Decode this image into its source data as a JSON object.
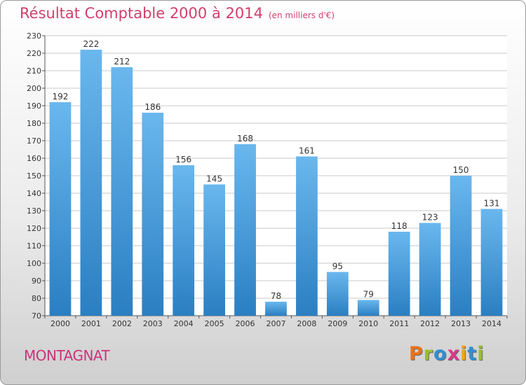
{
  "header": {
    "title": "Résultat Comptable 2000 à 2014",
    "unit": "(en milliers d'€)"
  },
  "footer": {
    "commune": "MONTAGNAT",
    "logo_text": "Proxiti"
  },
  "colors": {
    "title": "#d13f6b",
    "bar_top": "#6ab7ee",
    "bar_bottom": "#2a7fc2",
    "logo": [
      "#e8721c",
      "#9bbf2a",
      "#2f8fd0",
      "#d93a8a",
      "#f0a41c",
      "#2f8fd0",
      "#9bbf2a"
    ]
  },
  "chart_data": {
    "type": "bar",
    "title": "Résultat Comptable 2000 à 2014",
    "subtitle": "(en milliers d'€)",
    "xlabel": "",
    "ylabel": "",
    "ylim": [
      70,
      230
    ],
    "yticks": [
      70,
      80,
      90,
      100,
      110,
      120,
      130,
      140,
      150,
      160,
      170,
      180,
      190,
      200,
      210,
      220,
      230
    ],
    "grid": true,
    "categories": [
      "2000",
      "2001",
      "2002",
      "2003",
      "2004",
      "2005",
      "2006",
      "2007",
      "2008",
      "2009",
      "2010",
      "2011",
      "2012",
      "2013",
      "2014"
    ],
    "values": [
      192,
      222,
      212,
      186,
      156,
      145,
      168,
      78,
      161,
      95,
      79,
      118,
      123,
      150,
      131
    ]
  }
}
